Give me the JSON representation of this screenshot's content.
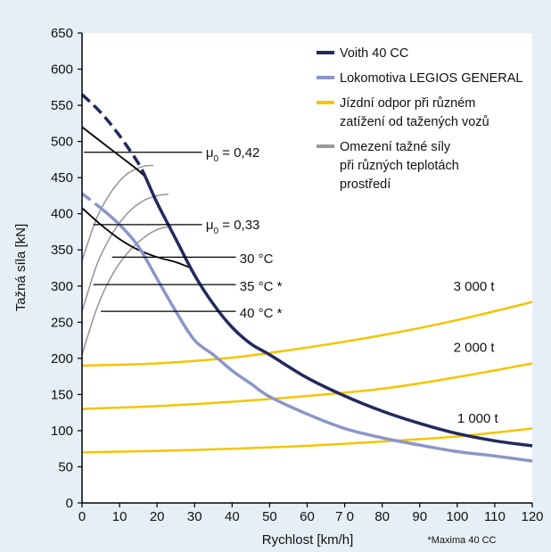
{
  "chart_data": {
    "type": "line",
    "xlabel": "Rychlost [km/h]",
    "ylabel": "Tažná síla [kN]",
    "xlim": [
      0,
      120
    ],
    "ylim": [
      0,
      650
    ],
    "xticks": [
      0,
      10,
      20,
      30,
      40,
      50,
      60,
      70,
      80,
      90,
      100,
      110,
      120
    ],
    "xtick_labels": [
      "0",
      "10",
      "20",
      "30",
      "40",
      "50",
      "60",
      "7 0",
      "80",
      "90",
      "100",
      "110",
      "120"
    ],
    "yticks": [
      0,
      50,
      100,
      150,
      200,
      250,
      300,
      350,
      400,
      450,
      500,
      550,
      600,
      650
    ],
    "grid": false,
    "legend_position": "top-right",
    "footnote": "*Maxima 40 CC",
    "legend": [
      {
        "label": "Voith 40 CC",
        "color": "#23295f"
      },
      {
        "label": "Lokomotiva LEGIOS GENERAL",
        "color": "#8b96c8"
      },
      {
        "label": "Jízdní odpor při různém zatížení od tažených vozů",
        "lines": [
          "Jízdní odpor při různém",
          "zatížení od tažených vozů"
        ],
        "color": "#f5c400"
      },
      {
        "label": "Omezení tažné síly při různých teplotách prostředí",
        "lines": [
          "Omezení tažné síly",
          "při různých teplotách",
          "prostředí"
        ],
        "color": "#999999"
      }
    ],
    "series": [
      {
        "name": "Voith 40 CC",
        "color": "#23295f",
        "width": 3.5,
        "x": [
          17,
          20,
          25,
          30,
          35,
          40,
          45,
          50,
          60,
          70,
          80,
          90,
          100,
          110,
          120
        ],
        "y": [
          450,
          415,
          365,
          315,
          275,
          243,
          220,
          205,
          173,
          148,
          127,
          110,
          96,
          86,
          79
        ]
      },
      {
        "name": "Voith 40 CC (dashed)",
        "color": "#23295f",
        "width": 3.5,
        "dash": true,
        "x": [
          0,
          5,
          10,
          15,
          17
        ],
        "y": [
          565,
          540,
          508,
          470,
          450
        ]
      },
      {
        "name": "Lokomotiva LEGIOS GENERAL",
        "color": "#8b96c8",
        "width": 3.5,
        "x": [
          5,
          10,
          15,
          20,
          25,
          30,
          35,
          40,
          45,
          50,
          60,
          70,
          80,
          90,
          100,
          110,
          120
        ],
        "y": [
          408,
          385,
          355,
          310,
          265,
          225,
          205,
          183,
          165,
          147,
          123,
          103,
          90,
          80,
          71,
          65,
          58
        ]
      },
      {
        "name": "Lokomotiva LEGIOS GENERAL (dashed)",
        "color": "#8b96c8",
        "width": 3.5,
        "dash": true,
        "x": [
          0,
          5
        ],
        "y": [
          428,
          408
        ]
      },
      {
        "name": "3000 t",
        "color": "#f5c400",
        "width": 2.5,
        "x": [
          0,
          20,
          40,
          60,
          80,
          100,
          120
        ],
        "y": [
          190,
          193,
          201,
          215,
          232,
          253,
          278
        ]
      },
      {
        "name": "2000 t",
        "color": "#f5c400",
        "width": 2.5,
        "x": [
          0,
          20,
          40,
          60,
          80,
          100,
          120
        ],
        "y": [
          130,
          134,
          140,
          148,
          158,
          174,
          193
        ]
      },
      {
        "name": "1000 t",
        "color": "#f5c400",
        "width": 2.5,
        "x": [
          0,
          20,
          40,
          60,
          80,
          100,
          120
        ],
        "y": [
          70,
          72,
          75,
          79,
          85,
          92,
          103
        ]
      },
      {
        "name": "μ0 = 0,42",
        "color": "#000000",
        "width": 1.8,
        "x": [
          0,
          5,
          10,
          15,
          17
        ],
        "y": [
          520,
          500,
          480,
          460,
          450
        ]
      },
      {
        "name": "μ0 = 0,33",
        "color": "#000000",
        "width": 1.8,
        "x": [
          0,
          5,
          10,
          15,
          20,
          25,
          29
        ],
        "y": [
          408,
          385,
          365,
          350,
          340,
          333,
          325
        ]
      },
      {
        "name": "30 °C",
        "color": "#999999",
        "width": 1.6,
        "x": [
          0,
          4,
          8,
          12,
          16,
          19
        ],
        "y": [
          335,
          395,
          432,
          455,
          465,
          467
        ]
      },
      {
        "name": "35 °C",
        "color": "#999999",
        "width": 1.6,
        "x": [
          0,
          4,
          8,
          12,
          16,
          20,
          23
        ],
        "y": [
          265,
          330,
          372,
          400,
          417,
          425,
          427
        ]
      },
      {
        "name": "40 °C",
        "color": "#999999",
        "width": 1.6,
        "x": [
          0,
          4,
          8,
          12,
          16,
          20,
          24
        ],
        "y": [
          205,
          270,
          315,
          345,
          365,
          378,
          383
        ]
      }
    ],
    "annotations": [
      {
        "text": "μ0 = 0,42",
        "main": "μ",
        "sub": "0",
        "rest": " = 0,42",
        "x": 0.5,
        "y": 485,
        "text_x": 33,
        "text_y": 485,
        "line_x2": 32
      },
      {
        "text": "μ0 = 0,33",
        "main": "μ",
        "sub": "0",
        "rest": " = 0,33",
        "x": 3,
        "y": 385,
        "text_x": 33,
        "text_y": 385,
        "line_x2": 32
      },
      {
        "text": "30 °C",
        "x": 8,
        "y": 340,
        "text_x": 42,
        "text_y": 338,
        "line_x2": 41
      },
      {
        "text": "35 °C *",
        "x": 3,
        "y": 302,
        "text_x": 42,
        "text_y": 300,
        "line_x2": 41
      },
      {
        "text": "40 °C *",
        "x": 5,
        "y": 265,
        "text_x": 42,
        "text_y": 263,
        "line_x2": 41
      },
      {
        "text": "3 000 t",
        "text_x": 99,
        "text_y": 300
      },
      {
        "text": "2 000 t",
        "text_x": 99,
        "text_y": 215
      },
      {
        "text": "1 000 t",
        "text_x": 100,
        "text_y": 117
      }
    ]
  }
}
